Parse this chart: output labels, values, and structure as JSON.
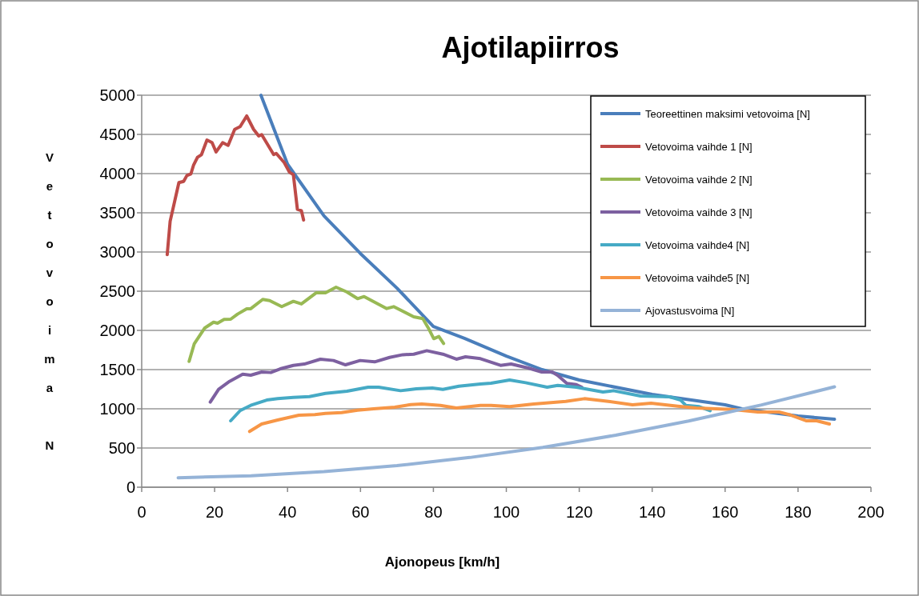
{
  "chart_data": {
    "type": "line",
    "title": "Ajotilapiirros",
    "xlabel": "Ajonopeus [km/h]",
    "ylabel": "Vetovoima N",
    "xlim": [
      0,
      200
    ],
    "xticks": [
      0,
      20,
      40,
      60,
      80,
      100,
      120,
      140,
      160,
      180,
      200
    ],
    "ylim": [
      0,
      5000
    ],
    "yticks": [
      0,
      500,
      1000,
      1500,
      2000,
      2500,
      3000,
      3500,
      4000,
      4500,
      5000
    ],
    "grid": "y",
    "legend": "top right",
    "line_style": "solid",
    "marker": "none",
    "series": [
      {
        "name": "Teoreettinen maksimi vetovoima [N]",
        "color": "#4a7ebb",
        "x": [
          32.7,
          40,
          50,
          60,
          70,
          80,
          88.5,
          100,
          109.8,
          120,
          140,
          160,
          164.6,
          180,
          190
        ],
        "values": [
          5000,
          4120,
          3460,
          2980,
          2540,
          2050,
          1900,
          1673,
          1500,
          1367,
          1183,
          1051,
          1000,
          908,
          867
        ]
      },
      {
        "name": "Vetovoima vaihde 1 [N]",
        "color": "#be4b48",
        "x": [
          7.0,
          7.8,
          10.2,
          11.5,
          12.4,
          13.5,
          14.2,
          15.3,
          16.4,
          17.9,
          19.3,
          20.4,
          22.2,
          23.7,
          25.5,
          27.0,
          28.8,
          30.7,
          32.1,
          32.9,
          36.2,
          36.9,
          39.1,
          40.5,
          41.6,
          42.7,
          43.8,
          44.4
        ],
        "values": [
          2966,
          3391,
          3885,
          3901,
          3976,
          3997,
          4105,
          4207,
          4242,
          4428,
          4395,
          4276,
          4395,
          4360,
          4564,
          4599,
          4735,
          4564,
          4480,
          4497,
          4242,
          4258,
          4140,
          4020,
          3985,
          3544,
          3527,
          3408
        ]
      },
      {
        "name": "Vetovoima vaihde 2 [N]",
        "color": "#98b954",
        "x": [
          13.0,
          14.4,
          17.3,
          19.7,
          20.8,
          22.6,
          24.4,
          26.3,
          28.8,
          29.9,
          33.2,
          35.1,
          38.4,
          41.6,
          43.8,
          47.9,
          50.4,
          53.3,
          56.3,
          59.2,
          61.0,
          67.2,
          69.1,
          74.6,
          77.1,
          78.6,
          80.1,
          81.5,
          82.8
        ],
        "values": [
          1605,
          1827,
          2031,
          2105,
          2092,
          2140,
          2143,
          2208,
          2276,
          2276,
          2395,
          2381,
          2303,
          2371,
          2337,
          2480,
          2480,
          2551,
          2490,
          2405,
          2432,
          2279,
          2303,
          2173,
          2150,
          2031,
          1895,
          1922,
          1834
        ]
      },
      {
        "name": "Vetovoima vaihde 3 [N]",
        "color": "#7d60a0",
        "x": [
          18.8,
          21.1,
          24.1,
          27.7,
          29.9,
          32.9,
          35.4,
          38.0,
          41.6,
          44.6,
          49.0,
          52.6,
          55.9,
          59.9,
          63.9,
          68.0,
          71.6,
          74.6,
          78.2,
          82.6,
          86.3,
          88.8,
          92.9,
          98.4,
          101.3,
          106.0,
          109.7,
          112.6,
          114.1,
          116.6,
          119.2,
          120.7
        ],
        "values": [
          1085,
          1248,
          1350,
          1442,
          1429,
          1469,
          1463,
          1510,
          1554,
          1571,
          1633,
          1616,
          1561,
          1616,
          1599,
          1656,
          1690,
          1697,
          1741,
          1697,
          1633,
          1663,
          1640,
          1554,
          1571,
          1520,
          1469,
          1469,
          1425,
          1323,
          1309,
          1276
        ]
      },
      {
        "name": "Vetovoima vaihde4 [N]",
        "color": "#46aac5",
        "x": [
          24.4,
          27.0,
          29.9,
          34.3,
          37.3,
          41.6,
          46.0,
          50.4,
          56.3,
          62.1,
          65.0,
          71.0,
          75.3,
          79.7,
          82.6,
          87.0,
          92.9,
          95.8,
          100.9,
          105.3,
          111.2,
          114.1,
          119.2,
          126.5,
          129.4,
          136.8,
          144.8,
          147.8,
          149.2,
          152.9,
          155.9
        ],
        "values": [
          847,
          977,
          1044,
          1112,
          1129,
          1146,
          1156,
          1197,
          1224,
          1276,
          1276,
          1231,
          1255,
          1265,
          1248,
          1289,
          1316,
          1327,
          1367,
          1333,
          1276,
          1299,
          1276,
          1214,
          1231,
          1163,
          1153,
          1112,
          1044,
          1027,
          976
        ]
      },
      {
        "name": "Vetovoima vaihde5 [N]",
        "color": "#f79646",
        "x": [
          29.6,
          32.9,
          37.3,
          43.1,
          47.5,
          50.4,
          54.8,
          59.2,
          63.6,
          69.4,
          73.8,
          76.8,
          81.9,
          86.3,
          92.9,
          95.8,
          100.9,
          107.5,
          116.3,
          121.4,
          128.0,
          134.6,
          139.7,
          147.0,
          152.1,
          161.7,
          169.0,
          174.8,
          177.7,
          182.2,
          185.1,
          188.6
        ],
        "values": [
          711,
          806,
          857,
          918,
          925,
          942,
          952,
          983,
          1000,
          1020,
          1054,
          1061,
          1044,
          1010,
          1044,
          1044,
          1027,
          1061,
          1095,
          1129,
          1095,
          1051,
          1071,
          1034,
          1010,
          993,
          959,
          959,
          925,
          847,
          847,
          806
        ]
      },
      {
        "name": "Ajovastusvoima [N]",
        "color": "#95b3d7",
        "x": [
          10,
          30,
          50,
          70,
          90,
          110,
          130,
          150,
          170,
          190
        ],
        "values": [
          120,
          146,
          198,
          275,
          379,
          508,
          663,
          844,
          1050,
          1280
        ]
      }
    ]
  }
}
